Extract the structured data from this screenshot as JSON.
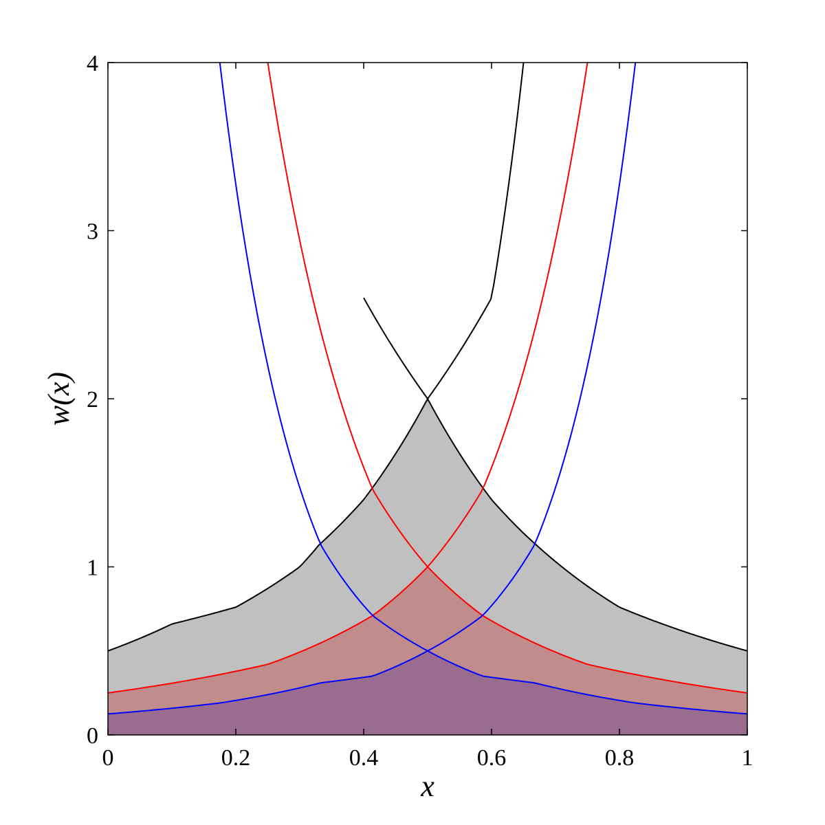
{
  "chart_data": {
    "type": "line",
    "title": "",
    "xlabel": "x",
    "ylabel": "w(x)",
    "xlim": [
      0,
      1
    ],
    "ylim": [
      0,
      4
    ],
    "x_ticks": [
      "0",
      "0.2",
      "0.4",
      "0.6",
      "0.8",
      "1"
    ],
    "y_ticks": [
      "0",
      "1",
      "2",
      "3",
      "4"
    ],
    "grid": false,
    "legend": "none",
    "series": [
      {
        "color": "#000000",
        "fill_color": "#c0c0c0",
        "peak_x": 0.5,
        "points": [
          {
            "x": 0.0,
            "y_rising": 0.5,
            "y_falling": null
          },
          {
            "x": 0.1,
            "y_rising": 0.66,
            "y_falling": null
          },
          {
            "x": 0.2,
            "y_rising": 0.76,
            "y_falling": null
          },
          {
            "x": 0.3,
            "y_rising": 1.0,
            "y_falling": null
          },
          {
            "x": 0.33,
            "y_rising": 1.13,
            "y_falling": null
          },
          {
            "x": 0.4,
            "y_rising": 1.4,
            "y_falling": 2.6
          },
          {
            "x": 0.5,
            "y_rising": 2.0,
            "y_falling": 2.0
          },
          {
            "x": 0.6,
            "y_rising": 2.6,
            "y_falling": 1.4
          },
          {
            "x": 0.65,
            "y_rising": 4.0,
            "y_falling": 1.2
          },
          {
            "x": 0.67,
            "y_rising": null,
            "y_falling": 1.13
          },
          {
            "x": 0.8,
            "y_rising": null,
            "y_falling": 0.76
          },
          {
            "x": 1.0,
            "y_rising": null,
            "y_falling": 0.5
          }
        ]
      },
      {
        "color": "#ff0000",
        "fill_color": "#c08c8c",
        "peak_x": 0.5,
        "points": [
          {
            "x": 0.0,
            "y_rising": 0.25,
            "y_falling": null
          },
          {
            "x": 0.25,
            "y_rising": 0.42,
            "y_falling": 4.0
          },
          {
            "x": 0.414,
            "y_rising": 0.71,
            "y_falling": 1.46
          },
          {
            "x": 0.5,
            "y_rising": 1.0,
            "y_falling": 1.0
          },
          {
            "x": 0.586,
            "y_rising": 1.46,
            "y_falling": 0.71
          },
          {
            "x": 0.75,
            "y_rising": 4.0,
            "y_falling": 0.42
          },
          {
            "x": 1.0,
            "y_rising": null,
            "y_falling": 0.25
          }
        ]
      },
      {
        "color": "#0000ff",
        "fill_color": "#9a6d90",
        "peak_x": 0.5,
        "points": [
          {
            "x": 0.0,
            "y_rising": 0.125,
            "y_falling": null
          },
          {
            "x": 0.175,
            "y_rising": 0.19,
            "y_falling": 4.0
          },
          {
            "x": 0.333,
            "y_rising": 0.31,
            "y_falling": 1.13
          },
          {
            "x": 0.414,
            "y_rising": 0.35,
            "y_falling": 0.71
          },
          {
            "x": 0.5,
            "y_rising": 0.5,
            "y_falling": 0.5
          },
          {
            "x": 0.586,
            "y_rising": 0.71,
            "y_falling": 0.35
          },
          {
            "x": 0.667,
            "y_rising": 1.13,
            "y_falling": 0.31
          },
          {
            "x": 0.825,
            "y_rising": 4.0,
            "y_falling": 0.19
          },
          {
            "x": 1.0,
            "y_rising": null,
            "y_falling": 0.125
          }
        ]
      }
    ]
  }
}
